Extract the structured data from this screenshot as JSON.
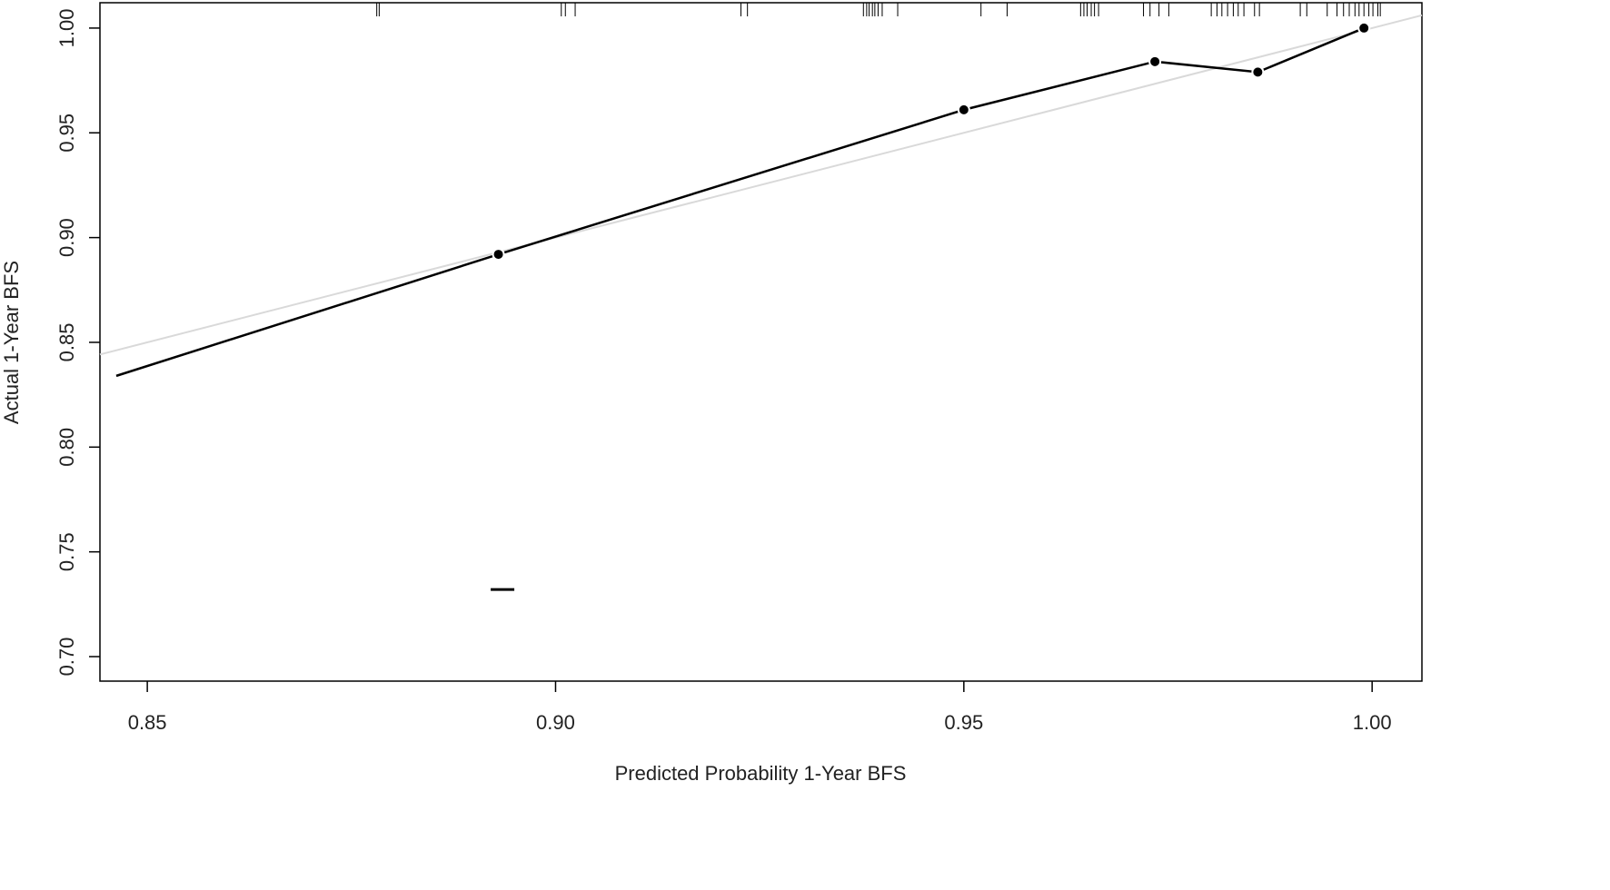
{
  "chart_data": {
    "type": "line",
    "x_label": "Predicted Probability 1-Year BFS",
    "y_label": "Actual 1-Year BFS",
    "xlim": [
      0.8442,
      1.0061
    ],
    "ylim": [
      0.6883,
      1.0121
    ],
    "xticks": [
      0.85,
      {
        "value": 0.9,
        "label": "0.90"
      },
      0.95,
      {
        "value": 1,
        "label": "1.00"
      }
    ],
    "yticks": [
      {
        "value": 0.7,
        "label": "0.70"
      },
      0.75,
      {
        "value": 0.8,
        "label": "0.80"
      },
      0.85,
      {
        "value": 0.9,
        "label": "0.90"
      },
      0.95,
      {
        "value": 1,
        "label": "1.00"
      }
    ],
    "grid": false,
    "series": [
      {
        "color": "#000000",
        "x": [
          0.8462,
          0.893,
          0.95,
          0.9734,
          0.986,
          0.999
        ],
        "values": [
          0.834,
          0.892,
          0.961,
          0.984,
          0.979,
          1.0
        ]
      }
    ],
    "points": {
      "color": "#000000",
      "x": [
        0.893,
        0.95,
        0.9734,
        0.986,
        0.999
      ],
      "values": [
        0.892,
        0.961,
        0.984,
        0.979,
        1.0
      ]
    },
    "reference_line": {
      "color": "#d9d9d9",
      "x": [
        0.8442,
        1.0061
      ],
      "values": [
        0.8442,
        1.0061
      ]
    },
    "marker": {
      "color": "#000000",
      "x": 0.8935,
      "y": 0.732
    },
    "rug": {
      "color": "#000000",
      "x": [
        0.8781,
        0.8784,
        0.9007,
        0.9012,
        0.9024,
        0.9227,
        0.9235,
        0.9377,
        0.9381,
        0.9384,
        0.9388,
        0.9391,
        0.9395,
        0.94,
        0.9419,
        0.9521,
        0.9553,
        0.9643,
        0.9647,
        0.9651,
        0.9656,
        0.966,
        0.9665,
        0.972,
        0.9728,
        0.9739,
        0.9751,
        0.9803,
        0.981,
        0.9816,
        0.9823,
        0.983,
        0.9836,
        0.9843,
        0.9856,
        0.9862,
        0.9912,
        0.992,
        0.9945,
        0.9957,
        0.9965,
        0.9972,
        0.9979,
        0.9984,
        0.999,
        0.9996,
        1.0001,
        1.0007,
        1.001
      ]
    }
  }
}
